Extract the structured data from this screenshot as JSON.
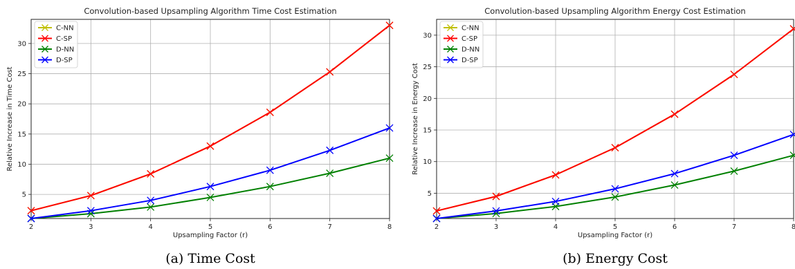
{
  "figure": {
    "panels": [
      {
        "caption": "(a) Time Cost",
        "chart_data": {
          "type": "line",
          "title": "Convolution-based Upsampling Algorithm Time Cost Estimation",
          "xlabel": "Upsampling Factor (r)",
          "ylabel": "Relative Increase in Time Cost",
          "x": [
            2,
            3,
            4,
            5,
            6,
            7,
            8
          ],
          "xlim": [
            2,
            8
          ],
          "ylim": [
            1,
            34
          ],
          "xticks": [
            2,
            3,
            4,
            5,
            6,
            7,
            8
          ],
          "yticks": [
            5,
            10,
            15,
            20,
            25,
            30
          ],
          "grid": true,
          "legend": "top-left",
          "marker": "x",
          "series": [
            {
              "name": "C-NN",
              "color": "#bfbf00",
              "values": [
                2.3,
                4.8,
                8.4,
                13.0,
                18.6,
                25.3,
                33.0
              ]
            },
            {
              "name": "C-SP",
              "color": "#ff0000",
              "values": [
                2.3,
                4.8,
                8.4,
                13.0,
                18.6,
                25.3,
                33.0
              ]
            },
            {
              "name": "D-NN",
              "color": "#008000",
              "values": [
                1.0,
                1.8,
                2.9,
                4.5,
                6.3,
                8.5,
                11.0
              ]
            },
            {
              "name": "D-SP",
              "color": "#0000ff",
              "values": [
                1.0,
                2.3,
                4.0,
                6.3,
                9.0,
                12.3,
                16.0
              ]
            }
          ]
        }
      },
      {
        "caption": "(b) Energy Cost",
        "chart_data": {
          "type": "line",
          "title": "Convolution-based Upsampling Algorithm Energy Cost Estimation",
          "xlabel": "Upsampling Factor (r)",
          "ylabel": "Relative Increase in Energy Cost",
          "x": [
            2,
            3,
            4,
            5,
            6,
            7,
            8
          ],
          "xlim": [
            2,
            8
          ],
          "ylim": [
            1,
            32.5
          ],
          "xticks": [
            2,
            3,
            4,
            5,
            6,
            7,
            8
          ],
          "yticks": [
            5,
            10,
            15,
            20,
            25,
            30
          ],
          "grid": true,
          "legend": "top-left",
          "marker": "x",
          "series": [
            {
              "name": "C-NN",
              "color": "#bfbf00",
              "values": [
                2.2,
                4.5,
                7.9,
                12.2,
                17.5,
                23.8,
                31.0
              ]
            },
            {
              "name": "C-SP",
              "color": "#ff0000",
              "values": [
                2.2,
                4.5,
                7.9,
                12.2,
                17.5,
                23.8,
                31.0
              ]
            },
            {
              "name": "D-NN",
              "color": "#008000",
              "values": [
                1.0,
                1.8,
                2.9,
                4.4,
                6.3,
                8.5,
                11.0
              ]
            },
            {
              "name": "D-SP",
              "color": "#0000ff",
              "values": [
                1.0,
                2.2,
                3.7,
                5.7,
                8.1,
                11.0,
                14.3
              ]
            }
          ]
        }
      }
    ]
  }
}
